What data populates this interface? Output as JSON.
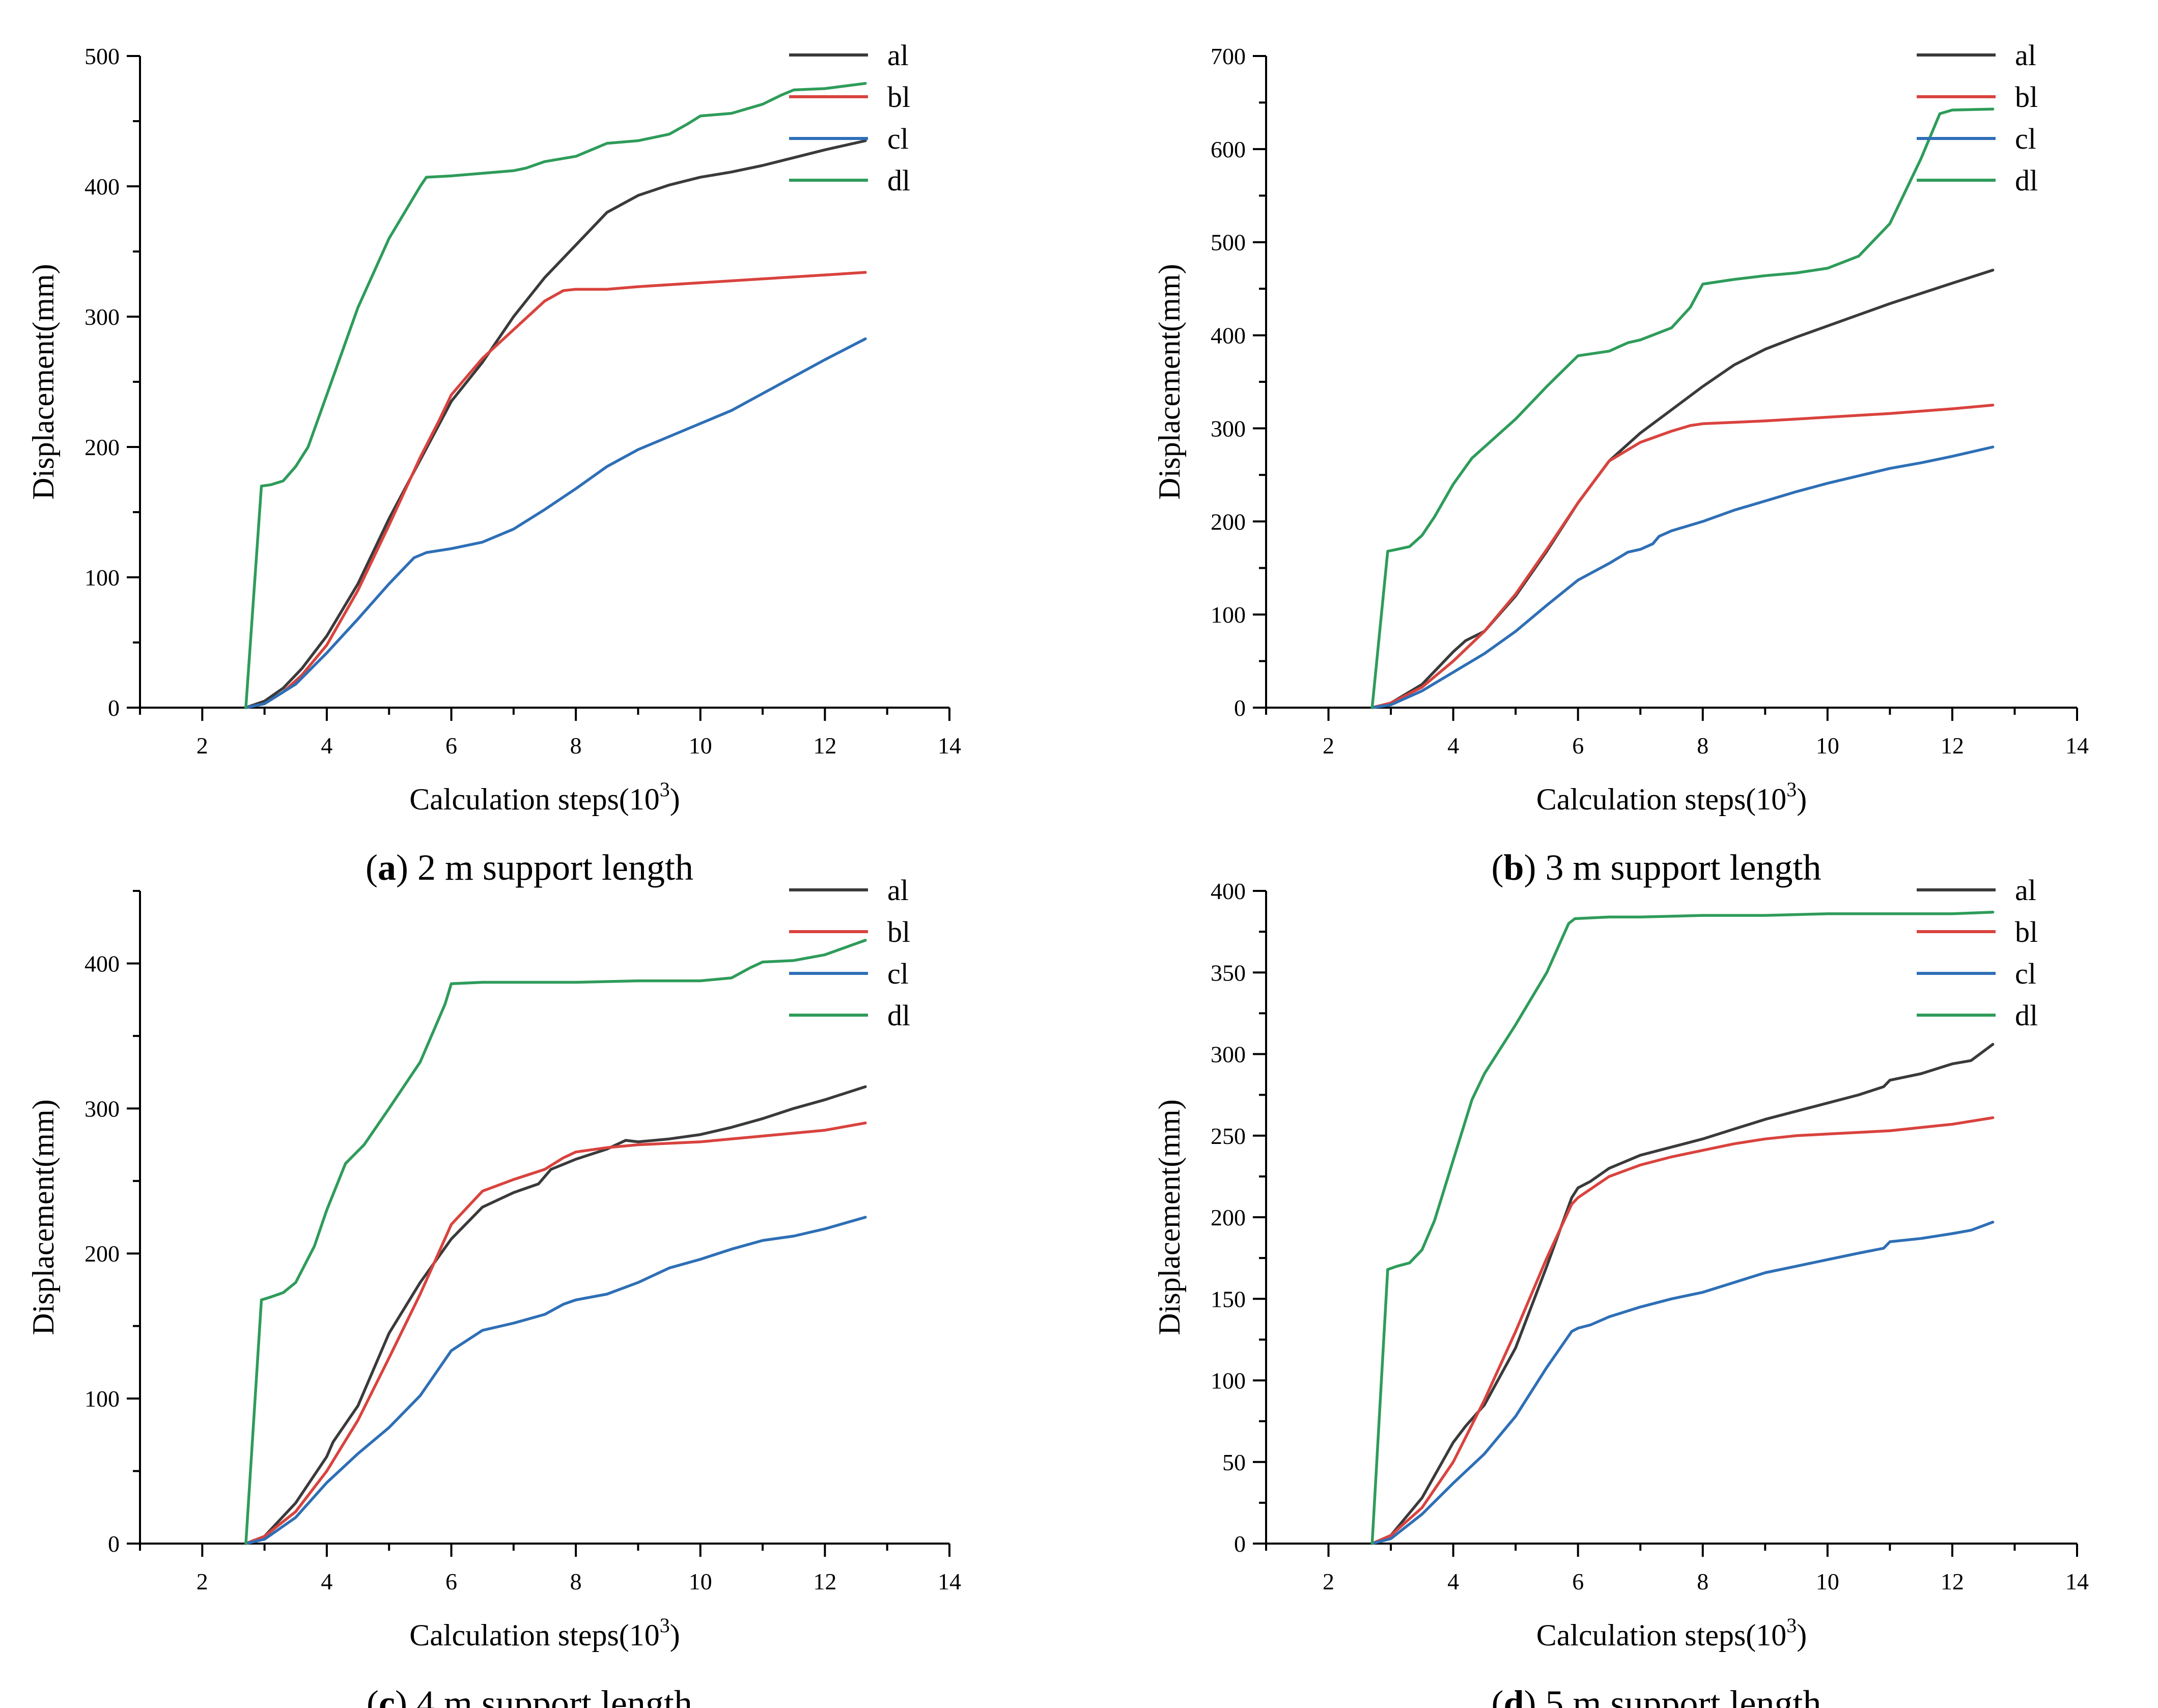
{
  "colors": {
    "al": "#3a3a3a",
    "bl": "#d9433e",
    "cl": "#2e6fb6",
    "dl": "#2e9c5a",
    "axis": "#000000"
  },
  "chart_data": [
    {
      "type": "line",
      "panel": "a",
      "caption_label": "a",
      "caption_text": " 2 m support length",
      "xlabel_text": "Calculation steps(10",
      "xlabel_sup": "3",
      "xlabel_close": ")",
      "ylabel": "Displacement(mm)",
      "xlim": [
        1,
        14
      ],
      "ylim": [
        0,
        500
      ],
      "xticks": [
        2,
        4,
        6,
        8,
        10,
        12,
        14
      ],
      "yticks": [
        0,
        100,
        200,
        300,
        400,
        500
      ],
      "legend_position": "top-right",
      "series": [
        {
          "name": "al",
          "x": [
            2.7,
            3.0,
            3.3,
            3.6,
            4.0,
            4.5,
            5.0,
            5.5,
            6.0,
            6.5,
            7.0,
            7.5,
            8.0,
            8.5,
            9.0,
            9.5,
            10.0,
            10.5,
            11.0,
            11.5,
            12.0,
            12.65
          ],
          "y": [
            0,
            5,
            15,
            30,
            55,
            95,
            145,
            190,
            235,
            265,
            300,
            330,
            355,
            380,
            393,
            401,
            407,
            411,
            416,
            422,
            428,
            435
          ]
        },
        {
          "name": "bl",
          "x": [
            2.7,
            3.0,
            3.3,
            3.6,
            4.0,
            4.5,
            5.0,
            5.5,
            5.8,
            6.0,
            6.5,
            7.0,
            7.5,
            7.8,
            8.0,
            8.5,
            9.0,
            10.0,
            11.0,
            12.0,
            12.65
          ],
          "y": [
            0,
            3,
            12,
            25,
            48,
            90,
            140,
            192,
            220,
            240,
            268,
            290,
            312,
            320,
            321,
            321,
            323,
            326,
            329,
            332,
            334
          ]
        },
        {
          "name": "cl",
          "x": [
            2.7,
            3.0,
            3.5,
            4.0,
            4.5,
            5.0,
            5.4,
            5.6,
            6.0,
            6.5,
            7.0,
            7.5,
            8.0,
            8.5,
            9.0,
            9.5,
            10.0,
            10.5,
            11.0,
            11.5,
            12.0,
            12.65
          ],
          "y": [
            0,
            3,
            18,
            42,
            68,
            95,
            115,
            119,
            122,
            127,
            137,
            152,
            168,
            185,
            198,
            208,
            218,
            228,
            241,
            254,
            267,
            283
          ]
        },
        {
          "name": "dl",
          "x": [
            2.7,
            2.95,
            3.1,
            3.3,
            3.5,
            3.7,
            4.0,
            4.5,
            5.0,
            5.5,
            5.6,
            6.0,
            6.5,
            7.0,
            7.2,
            7.5,
            8.0,
            8.3,
            8.5,
            9.0,
            9.5,
            9.8,
            10.0,
            10.5,
            11.0,
            11.3,
            11.5,
            12.0,
            12.65
          ],
          "y": [
            0,
            170,
            171,
            174,
            185,
            200,
            240,
            307,
            360,
            400,
            407,
            408,
            410,
            412,
            414,
            419,
            423,
            429,
            433,
            435,
            440,
            448,
            454,
            456,
            463,
            470,
            474,
            475,
            479
          ]
        }
      ]
    },
    {
      "type": "line",
      "panel": "b",
      "caption_label": "b",
      "caption_text": " 3 m support length",
      "xlabel_text": "Calculation steps(10",
      "xlabel_sup": "3",
      "xlabel_close": ")",
      "ylabel": "Displacement(mm)",
      "xlim": [
        1,
        14
      ],
      "ylim": [
        0,
        700
      ],
      "xticks": [
        2,
        4,
        6,
        8,
        10,
        12,
        14
      ],
      "yticks": [
        0,
        100,
        200,
        300,
        400,
        500,
        600,
        700
      ],
      "legend_position": "top-right",
      "series": [
        {
          "name": "al",
          "x": [
            2.7,
            3.0,
            3.5,
            4.0,
            4.2,
            4.5,
            5.0,
            5.5,
            6.0,
            6.5,
            7.0,
            7.5,
            8.0,
            8.5,
            9.0,
            9.5,
            10.0,
            10.5,
            11.0,
            11.5,
            12.0,
            12.65
          ],
          "y": [
            0,
            5,
            25,
            60,
            72,
            82,
            120,
            168,
            220,
            265,
            295,
            320,
            345,
            368,
            385,
            398,
            410,
            422,
            434,
            445,
            456,
            470
          ]
        },
        {
          "name": "bl",
          "x": [
            2.7,
            3.0,
            3.5,
            4.0,
            4.5,
            5.0,
            5.5,
            6.0,
            6.5,
            7.0,
            7.5,
            7.8,
            8.0,
            9.0,
            10.0,
            11.0,
            12.0,
            12.65
          ],
          "y": [
            0,
            5,
            22,
            50,
            82,
            122,
            170,
            220,
            265,
            285,
            297,
            303,
            305,
            308,
            312,
            316,
            321,
            325
          ]
        },
        {
          "name": "cl",
          "x": [
            2.7,
            3.0,
            3.5,
            4.0,
            4.5,
            5.0,
            5.5,
            6.0,
            6.5,
            6.8,
            7.0,
            7.2,
            7.3,
            7.5,
            8.0,
            8.5,
            9.0,
            9.5,
            10.0,
            10.5,
            11.0,
            11.5,
            12.0,
            12.65
          ],
          "y": [
            0,
            3,
            18,
            38,
            58,
            82,
            110,
            137,
            155,
            167,
            170,
            176,
            184,
            190,
            200,
            212,
            222,
            232,
            241,
            249,
            257,
            263,
            270,
            280
          ]
        },
        {
          "name": "dl",
          "x": [
            2.7,
            2.95,
            3.1,
            3.3,
            3.5,
            3.7,
            4.0,
            4.3,
            4.5,
            5.0,
            5.5,
            6.0,
            6.5,
            6.8,
            7.0,
            7.5,
            7.8,
            8.0,
            8.5,
            9.0,
            9.5,
            10.0,
            10.5,
            11.0,
            11.5,
            11.8,
            12.0,
            12.65
          ],
          "y": [
            0,
            168,
            170,
            173,
            185,
            205,
            240,
            268,
            280,
            310,
            345,
            378,
            383,
            392,
            395,
            408,
            430,
            455,
            460,
            464,
            467,
            472,
            485,
            520,
            590,
            638,
            642,
            643
          ]
        }
      ]
    },
    {
      "type": "line",
      "panel": "c",
      "caption_label": "c",
      "caption_text": " 4 m support length",
      "xlabel_text": "Calculation steps(10",
      "xlabel_sup": "3",
      "xlabel_close": ")",
      "ylabel": "Displacement(mm)",
      "xlim": [
        1,
        14
      ],
      "ylim": [
        0,
        450
      ],
      "xticks": [
        2,
        4,
        6,
        8,
        10,
        12,
        14
      ],
      "yticks": [
        0,
        100,
        200,
        300,
        400
      ],
      "legend_position": "top-right",
      "series": [
        {
          "name": "al",
          "x": [
            2.7,
            3.0,
            3.5,
            4.0,
            4.1,
            4.5,
            5.0,
            5.5,
            6.0,
            6.5,
            7.0,
            7.4,
            7.6,
            8.0,
            8.5,
            8.8,
            9.0,
            9.5,
            10.0,
            10.5,
            11.0,
            11.5,
            12.0,
            12.65
          ],
          "y": [
            0,
            5,
            28,
            60,
            70,
            95,
            145,
            180,
            210,
            232,
            242,
            248,
            258,
            265,
            272,
            278,
            277,
            279,
            282,
            287,
            293,
            300,
            306,
            315
          ]
        },
        {
          "name": "bl",
          "x": [
            2.7,
            3.0,
            3.5,
            4.0,
            4.5,
            5.0,
            5.5,
            6.0,
            6.5,
            7.0,
            7.5,
            7.8,
            8.0,
            8.5,
            9.0,
            10.0,
            11.0,
            12.0,
            12.65
          ],
          "y": [
            0,
            5,
            22,
            50,
            85,
            128,
            172,
            220,
            243,
            251,
            258,
            266,
            270,
            273,
            275,
            277,
            281,
            285,
            290
          ]
        },
        {
          "name": "cl",
          "x": [
            2.7,
            3.0,
            3.5,
            4.0,
            4.5,
            5.0,
            5.5,
            6.0,
            6.5,
            7.0,
            7.5,
            7.8,
            8.0,
            8.5,
            9.0,
            9.5,
            10.0,
            10.5,
            11.0,
            11.5,
            12.0,
            12.65
          ],
          "y": [
            0,
            3,
            18,
            42,
            62,
            80,
            102,
            133,
            147,
            152,
            158,
            165,
            168,
            172,
            180,
            190,
            196,
            203,
            209,
            212,
            217,
            225
          ]
        },
        {
          "name": "dl",
          "x": [
            2.7,
            2.95,
            3.1,
            3.3,
            3.5,
            3.8,
            4.0,
            4.3,
            4.6,
            5.0,
            5.5,
            5.9,
            6.0,
            6.5,
            7.0,
            8.0,
            9.0,
            10.0,
            10.5,
            10.8,
            11.0,
            11.5,
            12.0,
            12.65
          ],
          "y": [
            0,
            168,
            170,
            173,
            180,
            205,
            230,
            262,
            275,
            300,
            332,
            372,
            386,
            387,
            387,
            387,
            388,
            388,
            390,
            397,
            401,
            402,
            406,
            416
          ]
        }
      ]
    },
    {
      "type": "line",
      "panel": "d",
      "caption_label": "d",
      "caption_text": " 5 m support length",
      "xlabel_text": "Calculation steps(10",
      "xlabel_sup": "3",
      "xlabel_close": ")",
      "ylabel": "Displacement(mm)",
      "xlim": [
        1,
        14
      ],
      "ylim": [
        0,
        400
      ],
      "xticks": [
        2,
        4,
        6,
        8,
        10,
        12,
        14
      ],
      "yticks": [
        0,
        50,
        100,
        150,
        200,
        250,
        300,
        350,
        400
      ],
      "legend_position": "top-right",
      "series": [
        {
          "name": "al",
          "x": [
            2.7,
            3.0,
            3.5,
            4.0,
            4.2,
            4.5,
            5.0,
            5.5,
            5.9,
            6.0,
            6.2,
            6.5,
            7.0,
            7.5,
            8.0,
            8.5,
            9.0,
            9.5,
            10.0,
            10.5,
            10.9,
            11.0,
            11.5,
            12.0,
            12.3,
            12.65
          ],
          "y": [
            0,
            5,
            28,
            62,
            72,
            85,
            120,
            170,
            212,
            218,
            222,
            230,
            238,
            243,
            248,
            254,
            260,
            265,
            270,
            275,
            280,
            284,
            288,
            294,
            296,
            306
          ]
        },
        {
          "name": "bl",
          "x": [
            2.7,
            3.0,
            3.5,
            4.0,
            4.5,
            5.0,
            5.5,
            5.9,
            6.0,
            6.5,
            7.0,
            7.5,
            8.0,
            8.5,
            9.0,
            9.5,
            10.0,
            11.0,
            12.0,
            12.65
          ],
          "y": [
            0,
            5,
            22,
            50,
            88,
            130,
            175,
            208,
            212,
            225,
            232,
            237,
            241,
            245,
            248,
            250,
            251,
            253,
            257,
            261
          ]
        },
        {
          "name": "cl",
          "x": [
            2.7,
            3.0,
            3.5,
            4.0,
            4.5,
            5.0,
            5.5,
            5.9,
            6.0,
            6.2,
            6.5,
            7.0,
            7.5,
            8.0,
            8.5,
            9.0,
            9.5,
            10.0,
            10.5,
            10.9,
            11.0,
            11.5,
            12.0,
            12.3,
            12.65
          ],
          "y": [
            0,
            3,
            18,
            37,
            55,
            78,
            108,
            130,
            132,
            134,
            139,
            145,
            150,
            154,
            160,
            166,
            170,
            174,
            178,
            181,
            185,
            187,
            190,
            192,
            197
          ]
        },
        {
          "name": "dl",
          "x": [
            2.7,
            2.95,
            3.1,
            3.3,
            3.5,
            3.7,
            4.0,
            4.3,
            4.5,
            5.0,
            5.5,
            5.85,
            5.95,
            6.5,
            7.0,
            8.0,
            9.0,
            10.0,
            11.0,
            12.0,
            12.65
          ],
          "y": [
            0,
            168,
            170,
            172,
            180,
            198,
            235,
            272,
            288,
            318,
            350,
            380,
            383,
            384,
            384,
            385,
            385,
            386,
            386,
            386,
            387
          ]
        }
      ]
    }
  ]
}
